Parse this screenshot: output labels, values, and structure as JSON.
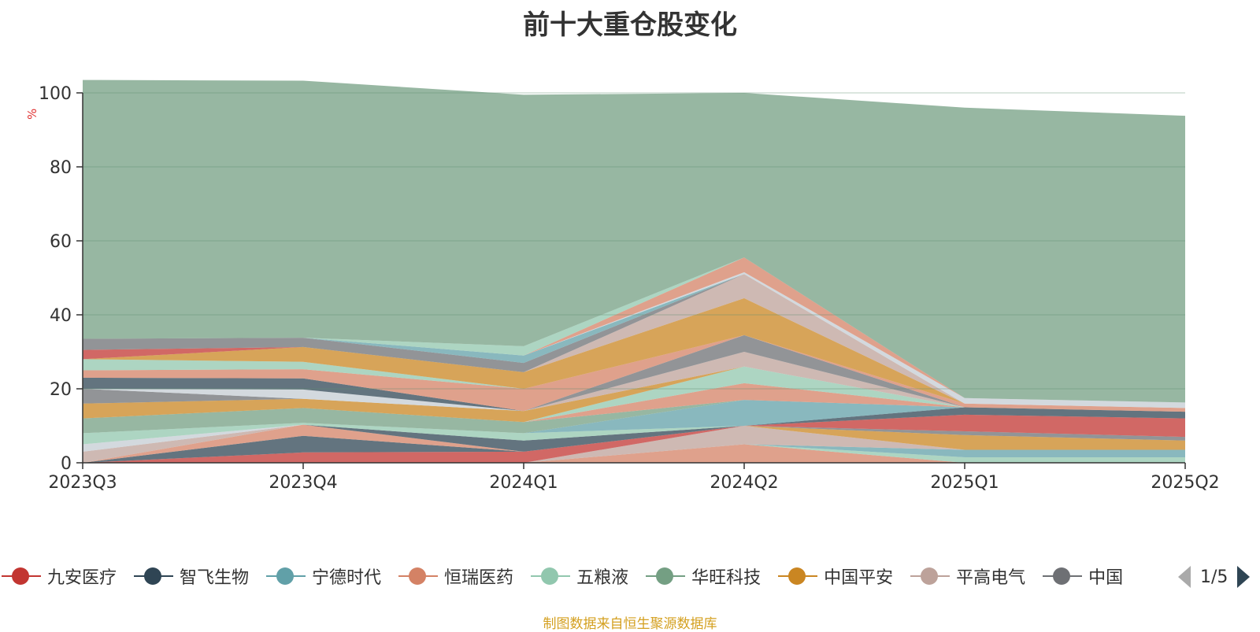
{
  "title": "前十大重仓股变化",
  "source_note": "制图数据来自恒生聚源数据库",
  "legend": {
    "items": [
      {
        "label": "九安医疗",
        "color": "#c23531"
      },
      {
        "label": "智飞生物",
        "color": "#2f4554"
      },
      {
        "label": "宁德时代",
        "color": "#61a0a8"
      },
      {
        "label": "恒瑞医药",
        "color": "#d48265"
      },
      {
        "label": "五粮液",
        "color": "#91c7ae"
      },
      {
        "label": "华旺科技",
        "color": "#749f83"
      },
      {
        "label": "中国平安",
        "color": "#ca8622"
      },
      {
        "label": "平高电气",
        "color": "#bda29a"
      },
      {
        "label": "中国",
        "color": "#6e7074"
      }
    ],
    "page_indicator": "1/5"
  },
  "chart_data": {
    "type": "area",
    "stacked": true,
    "title": "前十大重仓股变化",
    "ylabel": "%",
    "ylim": [
      0,
      100
    ],
    "yticks": [
      "0",
      "20",
      "40",
      "60",
      "80",
      "100"
    ],
    "categories": [
      "2023Q3",
      "2023Q4",
      "2024Q1",
      "2024Q2",
      "2025Q1",
      "2025Q2"
    ],
    "grid": true,
    "series": [
      {
        "color": "#d48265",
        "values": [
          0,
          0,
          0,
          5.0,
          0,
          0
        ]
      },
      {
        "color": "#91c7ae",
        "values": [
          0,
          0,
          0,
          0,
          1.5,
          1.5
        ]
      },
      {
        "color": "#61a0a8",
        "values": [
          0,
          0,
          0,
          0,
          2.0,
          2.0
        ]
      },
      {
        "color": "#bda29a",
        "values": [
          0,
          0,
          0,
          5.0,
          0,
          0
        ]
      },
      {
        "color": "#ca8622",
        "values": [
          0,
          0,
          0,
          0,
          4.0,
          2.5
        ]
      },
      {
        "color": "#6e7074",
        "values": [
          0,
          0,
          0,
          0,
          1.0,
          1.0
        ]
      },
      {
        "color": "#c23531",
        "values": [
          0,
          2.8,
          3.0,
          0,
          4.5,
          5.0
        ]
      },
      {
        "color": "#2f4554",
        "values": [
          0,
          4.5,
          0,
          0,
          2.0,
          1.8
        ]
      },
      {
        "color": "#d48265",
        "values": [
          0,
          3.0,
          0,
          0,
          0,
          0
        ]
      },
      {
        "color": "#bda29a",
        "values": [
          3.0,
          0,
          0,
          0,
          0,
          0
        ]
      },
      {
        "color": "#c4ccd3",
        "values": [
          2.0,
          0,
          0,
          0,
          0,
          0
        ]
      },
      {
        "color": "#2f4554",
        "values": [
          0,
          0,
          3.0,
          0,
          0,
          0
        ]
      },
      {
        "color": "#91c7ae",
        "values": [
          3.0,
          0.5,
          2.0,
          0,
          0,
          0
        ]
      },
      {
        "color": "#61a0a8",
        "values": [
          0,
          0,
          0,
          7.0,
          0,
          0
        ]
      },
      {
        "color": "#749f83",
        "values": [
          4.0,
          4.0,
          3.0,
          0,
          0,
          0
        ]
      },
      {
        "color": "#d48265",
        "values": [
          0,
          0,
          0,
          4.5,
          0,
          0
        ]
      },
      {
        "color": "#91c7ae",
        "values": [
          0,
          0,
          0,
          4.5,
          0,
          0
        ]
      },
      {
        "color": "#ca8622",
        "values": [
          4.0,
          2.5,
          3.0,
          0,
          0,
          0
        ]
      },
      {
        "color": "#bda29a",
        "values": [
          0,
          0,
          0,
          4.0,
          0,
          0
        ]
      },
      {
        "color": "#6e7074",
        "values": [
          4.0,
          0,
          0,
          4.5,
          0,
          0
        ]
      },
      {
        "color": "#c4ccd3",
        "values": [
          0,
          2.5,
          0,
          0,
          0,
          0
        ]
      },
      {
        "color": "#2f4554",
        "values": [
          3.0,
          3.0,
          0,
          0,
          0,
          0
        ]
      },
      {
        "color": "#d48265",
        "values": [
          2.0,
          2.5,
          6.0,
          0,
          1.0,
          1.0
        ]
      },
      {
        "color": "#91c7ae",
        "values": [
          3.0,
          2.0,
          0,
          0,
          0,
          0
        ]
      },
      {
        "color": "#ca8622",
        "values": [
          0,
          4.0,
          4.5,
          10.0,
          0,
          0
        ]
      },
      {
        "color": "#bda29a",
        "values": [
          0,
          0,
          0,
          6.5,
          0,
          0
        ]
      },
      {
        "color": "#c23531",
        "values": [
          2.5,
          0,
          0,
          0,
          0,
          0
        ]
      },
      {
        "color": "#6e7074",
        "values": [
          3.0,
          2.5,
          2.5,
          0,
          0,
          0
        ]
      },
      {
        "color": "#61a0a8",
        "values": [
          0,
          0,
          2.0,
          0,
          0,
          0
        ]
      },
      {
        "color": "#c4ccd3",
        "values": [
          0,
          0,
          0,
          0.5,
          1.5,
          1.5
        ]
      },
      {
        "color": "#d48265",
        "values": [
          0,
          0,
          0,
          4.0,
          0,
          0
        ]
      },
      {
        "color": "#91c7ae",
        "values": [
          0,
          0,
          2.5,
          0,
          0,
          0
        ]
      },
      {
        "color": "#749f83",
        "values": [
          70.0,
          69.5,
          68.0,
          44.5,
          78.5,
          77.5
        ]
      }
    ]
  }
}
